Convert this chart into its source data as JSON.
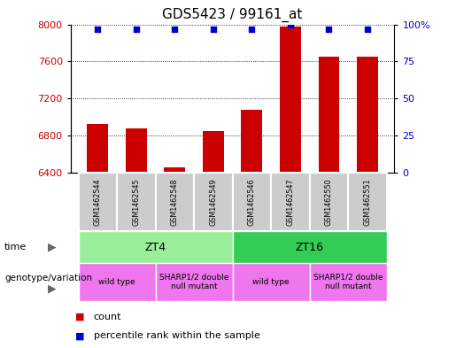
{
  "title": "GDS5423 / 99161_at",
  "samples": [
    "GSM1462544",
    "GSM1462545",
    "GSM1462548",
    "GSM1462549",
    "GSM1462546",
    "GSM1462547",
    "GSM1462550",
    "GSM1462551"
  ],
  "counts": [
    6920,
    6870,
    6455,
    6850,
    7080,
    7980,
    7650,
    7650
  ],
  "percentiles": [
    97,
    97,
    97,
    97,
    97,
    100,
    97,
    97
  ],
  "ylim_left": [
    6400,
    8000
  ],
  "ylim_right": [
    0,
    100
  ],
  "yticks_left": [
    6400,
    6800,
    7200,
    7600,
    8000
  ],
  "yticks_right": [
    0,
    25,
    50,
    75,
    100
  ],
  "bar_color": "#cc0000",
  "dot_color": "#0000cc",
  "time_groups": [
    {
      "label": "ZT4",
      "start": 0,
      "end": 4,
      "color": "#99ee99"
    },
    {
      "label": "ZT16",
      "start": 4,
      "end": 8,
      "color": "#33cc55"
    }
  ],
  "genotype_groups": [
    {
      "label": "wild type",
      "start": 0,
      "end": 2
    },
    {
      "label": "SHARP1/2 double\nnull mutant",
      "start": 2,
      "end": 4
    },
    {
      "label": "wild type",
      "start": 4,
      "end": 6
    },
    {
      "label": "SHARP1/2 double\nnull mutant",
      "start": 6,
      "end": 8
    }
  ],
  "geno_color": "#ee77ee",
  "sample_col_color": "#cccccc",
  "left_axis_color": "#cc0000",
  "right_axis_color": "#0000cc",
  "legend_items": [
    {
      "color": "#cc0000",
      "label": "count"
    },
    {
      "color": "#0000cc",
      "label": "percentile rank within the sample"
    }
  ]
}
